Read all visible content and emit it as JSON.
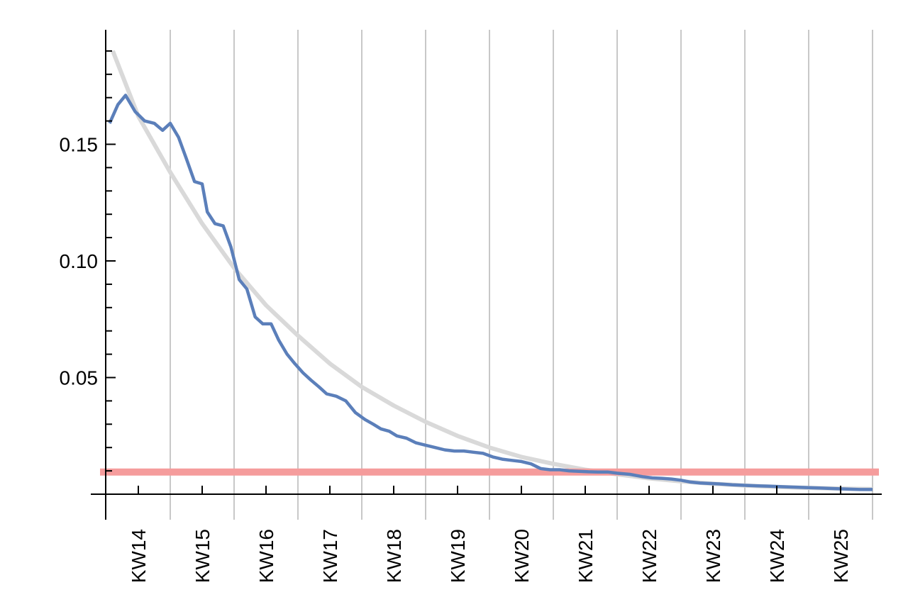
{
  "chart_data": {
    "type": "line",
    "title": "",
    "xlabel": "",
    "ylabel": "",
    "x_unit": "calendar week (KW)",
    "xlim": [
      13.55,
      25.6
    ],
    "ylim": [
      0,
      0.2
    ],
    "categories": [
      "KW14",
      "KW15",
      "KW16",
      "KW17",
      "KW18",
      "KW19",
      "KW20",
      "KW21",
      "KW22",
      "KW23",
      "KW24",
      "KW25"
    ],
    "y_ticks": [
      {
        "value": 0.05,
        "label": "0.05"
      },
      {
        "value": 0.1,
        "label": "0.10"
      },
      {
        "value": 0.15,
        "label": "0.15"
      }
    ],
    "grid": {
      "vertical": true,
      "horizontal": false,
      "color": "#c8c8c8",
      "positions": [
        14.5,
        15.5,
        16.5,
        17.5,
        18.5,
        19.5,
        20.5,
        21.5,
        22.5,
        23.5,
        24.5,
        25.5
      ]
    },
    "legend": "none",
    "colors": {
      "observed": "#5b7fba",
      "fit": "#d9d9d9",
      "threshold": "#f59c9c"
    },
    "series": [
      {
        "role": "observed",
        "x": [
          13.55,
          13.68,
          13.8,
          13.95,
          14.1,
          14.25,
          14.38,
          14.5,
          14.63,
          14.75,
          14.88,
          15.0,
          15.08,
          15.2,
          15.33,
          15.45,
          15.58,
          15.7,
          15.83,
          15.95,
          16.08,
          16.2,
          16.33,
          16.45,
          16.58,
          16.7,
          16.83,
          16.95,
          17.1,
          17.25,
          17.4,
          17.55,
          17.68,
          17.8,
          17.93,
          18.05,
          18.2,
          18.35,
          18.5,
          18.65,
          18.8,
          18.95,
          19.1,
          19.25,
          19.4,
          19.55,
          19.7,
          19.85,
          20.0,
          20.15,
          20.3,
          20.45,
          20.6,
          20.75,
          20.9,
          21.05,
          21.2,
          21.35,
          21.5,
          21.7,
          21.9,
          22.05,
          22.2,
          22.35,
          22.5,
          22.65,
          22.8,
          22.95,
          23.1,
          23.3,
          23.5,
          23.7,
          23.9,
          24.1,
          24.3,
          24.5,
          24.7,
          24.9,
          25.1,
          25.3,
          25.5
        ],
        "y": [
          0.159,
          0.167,
          0.171,
          0.164,
          0.16,
          0.159,
          0.156,
          0.159,
          0.153,
          0.144,
          0.134,
          0.133,
          0.121,
          0.116,
          0.115,
          0.106,
          0.092,
          0.088,
          0.076,
          0.073,
          0.073,
          0.066,
          0.06,
          0.056,
          0.052,
          0.049,
          0.046,
          0.043,
          0.042,
          0.04,
          0.035,
          0.032,
          0.03,
          0.028,
          0.027,
          0.025,
          0.024,
          0.022,
          0.021,
          0.02,
          0.019,
          0.0185,
          0.0185,
          0.018,
          0.0175,
          0.016,
          0.015,
          0.0145,
          0.014,
          0.013,
          0.011,
          0.0105,
          0.0105,
          0.01,
          0.0098,
          0.0096,
          0.0095,
          0.0095,
          0.009,
          0.0085,
          0.0075,
          0.007,
          0.0068,
          0.0065,
          0.006,
          0.0052,
          0.0048,
          0.0046,
          0.0044,
          0.004,
          0.0038,
          0.0036,
          0.0034,
          0.0032,
          0.003,
          0.0028,
          0.0026,
          0.0024,
          0.0022,
          0.002,
          0.002
        ]
      },
      {
        "role": "fit",
        "x": [
          13.6,
          14.0,
          14.5,
          15.0,
          15.5,
          16.0,
          16.5,
          17.0,
          17.5,
          18.0,
          18.5,
          19.0,
          19.5,
          20.0,
          20.5,
          21.0,
          21.5,
          22.0,
          22.5,
          23.0,
          23.5,
          24.0,
          24.5,
          25.0,
          25.5
        ],
        "y": [
          0.19,
          0.162,
          0.138,
          0.116,
          0.097,
          0.081,
          0.068,
          0.056,
          0.046,
          0.038,
          0.031,
          0.025,
          0.02,
          0.016,
          0.013,
          0.0105,
          0.0085,
          0.0068,
          0.0055,
          0.0045,
          0.0037,
          0.0031,
          0.0027,
          0.0024,
          0.0022
        ]
      },
      {
        "role": "threshold",
        "x": [
          13.4,
          25.6
        ],
        "y": [
          0.0095,
          0.0095
        ]
      }
    ]
  }
}
